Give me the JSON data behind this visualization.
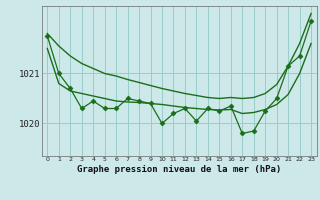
{
  "title": "Graphe pression niveau de la mer (hPa)",
  "background_color": "#cce8e8",
  "grid_color": "#99cccc",
  "line_color": "#1a6e1a",
  "x_ticks": [
    0,
    1,
    2,
    3,
    4,
    5,
    6,
    7,
    8,
    9,
    10,
    11,
    12,
    13,
    14,
    15,
    16,
    17,
    18,
    19,
    20,
    21,
    22,
    23
  ],
  "ylim_min": 1019.35,
  "ylim_max": 1022.35,
  "yticks": [
    1020,
    1021
  ],
  "series_zigzag": [
    1021.75,
    1021.0,
    1020.7,
    1020.3,
    1020.45,
    1020.3,
    1020.3,
    1020.5,
    1020.45,
    1020.4,
    1020.0,
    1020.2,
    1020.3,
    1020.05,
    1020.3,
    1020.25,
    1020.35,
    1019.8,
    1019.85,
    1020.25,
    1020.5,
    1021.15,
    1021.35,
    1022.05
  ],
  "smooth_low": [
    1021.5,
    1020.8,
    1020.65,
    1020.6,
    1020.55,
    1020.5,
    1020.45,
    1020.43,
    1020.42,
    1020.4,
    1020.38,
    1020.35,
    1020.32,
    1020.3,
    1020.28,
    1020.27,
    1020.28,
    1020.2,
    1020.22,
    1020.28,
    1020.38,
    1020.58,
    1021.0,
    1021.6
  ],
  "upper_diagonal": [
    1021.8,
    1021.55,
    1021.35,
    1021.2,
    1021.1,
    1021.0,
    1020.95,
    1020.88,
    1020.82,
    1020.76,
    1020.7,
    1020.65,
    1020.6,
    1020.56,
    1020.52,
    1020.5,
    1020.52,
    1020.5,
    1020.52,
    1020.6,
    1020.78,
    1021.15,
    1021.6,
    1022.2
  ]
}
